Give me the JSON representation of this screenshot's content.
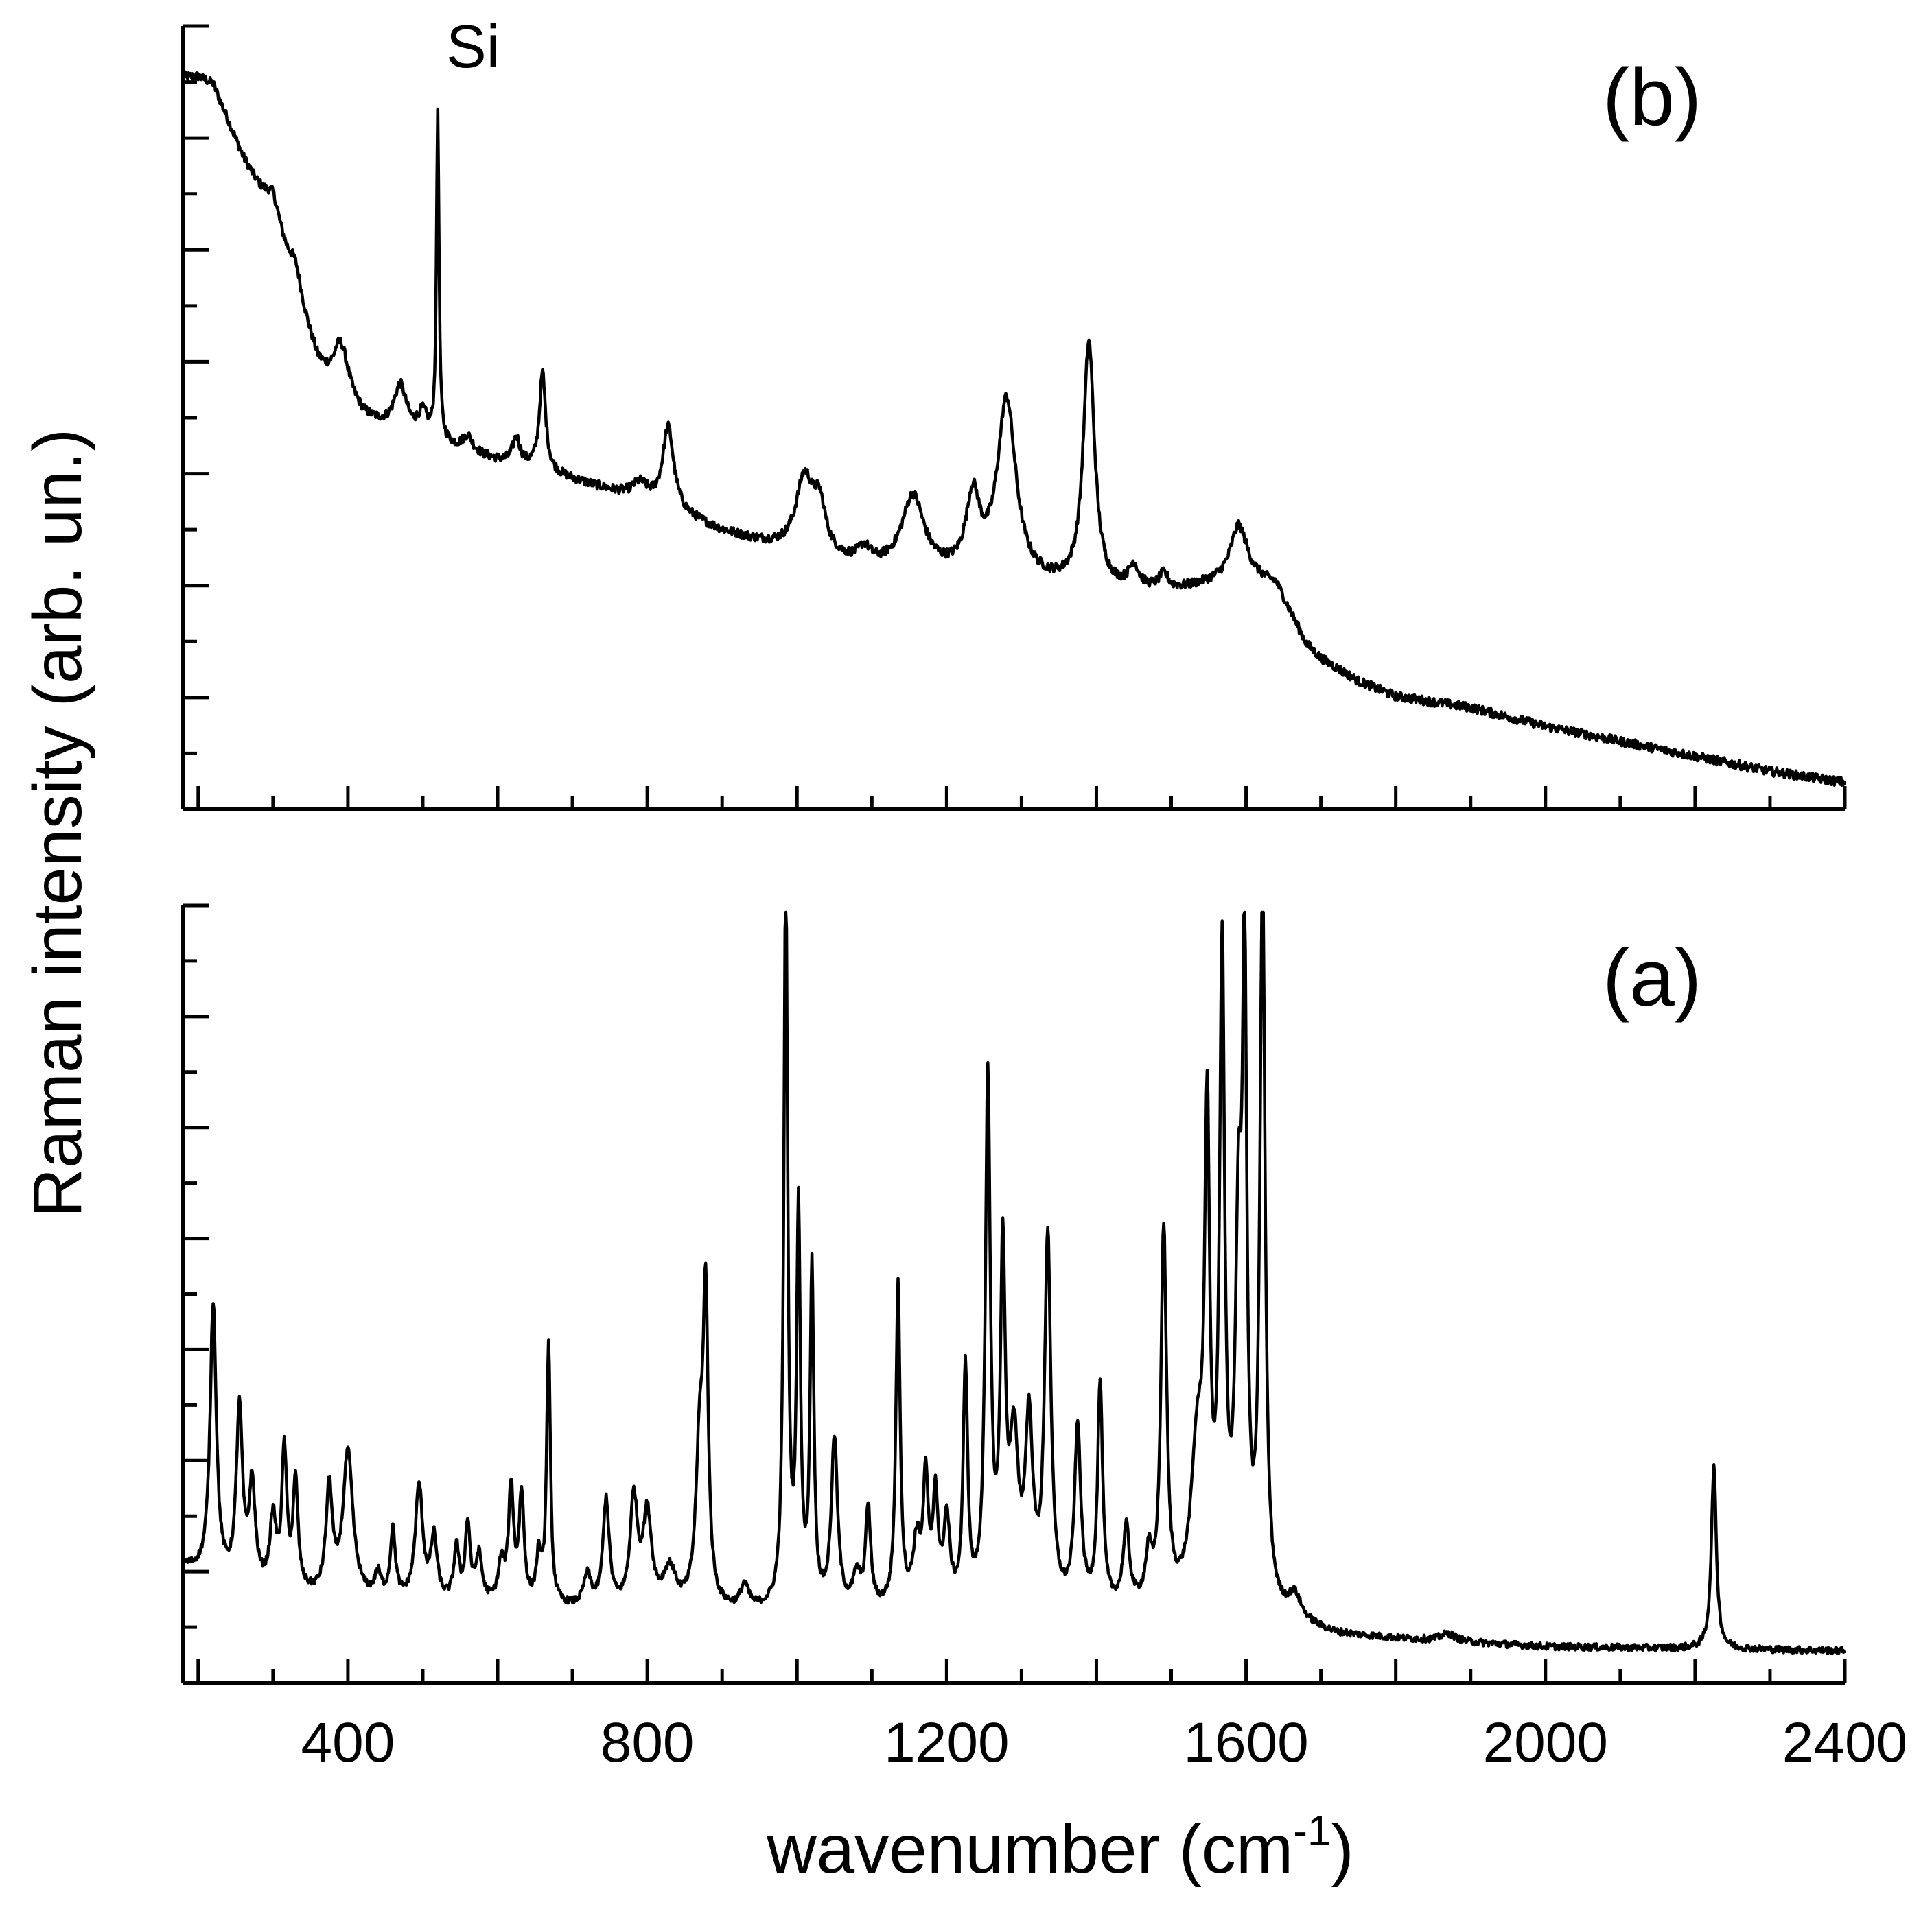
{
  "chart_data": [
    {
      "id": "panel-b",
      "type": "line",
      "panel_label": "(b)",
      "xlabel": "",
      "ylabel": "Raman intensity (arb. un.)",
      "xlim": [
        180,
        2400
      ],
      "ylim": [
        0,
        100
      ],
      "y_ticks_shown": false,
      "baseline": [
        [
          180,
          97
        ],
        [
          200,
          97
        ],
        [
          220,
          96
        ],
        [
          260,
          86
        ],
        [
          300,
          78
        ],
        [
          330,
          68
        ],
        [
          360,
          58
        ],
        [
          380,
          54
        ],
        [
          420,
          51
        ],
        [
          450,
          50
        ],
        [
          500,
          48.5
        ],
        [
          550,
          47
        ],
        [
          600,
          45.5
        ],
        [
          650,
          44.5
        ],
        [
          700,
          43
        ],
        [
          750,
          41.5
        ],
        [
          800,
          40
        ],
        [
          850,
          38
        ],
        [
          900,
          36
        ],
        [
          950,
          34.5
        ],
        [
          1000,
          33
        ],
        [
          1050,
          32
        ],
        [
          1100,
          31
        ],
        [
          1150,
          30.5
        ],
        [
          1200,
          30
        ],
        [
          1250,
          29.5
        ],
        [
          1300,
          29
        ],
        [
          1350,
          28.5
        ],
        [
          1400,
          28
        ],
        [
          1450,
          28
        ],
        [
          1500,
          28
        ],
        [
          1550,
          29
        ],
        [
          1600,
          30
        ],
        [
          1640,
          29
        ],
        [
          1660,
          25
        ],
        [
          1680,
          21
        ],
        [
          1700,
          19
        ],
        [
          1750,
          16
        ],
        [
          1800,
          14
        ],
        [
          1900,
          12.5
        ],
        [
          2000,
          10
        ],
        [
          2100,
          8
        ],
        [
          2200,
          6
        ],
        [
          2300,
          4
        ],
        [
          2400,
          2.5
        ]
      ],
      "peaks": [
        [
          300,
          3,
          12
        ],
        [
          330,
          3.5,
          10
        ],
        [
          390,
          8,
          14
        ],
        [
          470,
          6,
          10
        ],
        [
          500,
          3,
          8
        ],
        [
          520,
          44,
          2
        ],
        [
          560,
          2,
          8
        ],
        [
          625,
          3.5,
          6
        ],
        [
          660,
          13,
          5
        ],
        [
          790,
          2,
          12
        ],
        [
          828,
          11,
          9
        ],
        [
          1010,
          10,
          14
        ],
        [
          1030,
          6,
          10
        ],
        [
          1090,
          2,
          10
        ],
        [
          1155,
          10,
          18
        ],
        [
          1235,
          10,
          11
        ],
        [
          1280,
          24,
          15
        ],
        [
          1390,
          33,
          9
        ],
        [
          1450,
          3,
          8
        ],
        [
          1490,
          2,
          8
        ],
        [
          1590,
          7,
          13
        ]
      ],
      "noise": 0.6,
      "annotations": [
        {
          "text": "Si",
          "x": 520
        }
      ]
    },
    {
      "id": "panel-a",
      "type": "line",
      "panel_label": "(a)",
      "xlabel": "wavenumber (cm",
      "xlabel_sup": "-1",
      "xlabel_close": ")",
      "ylabel": "Raman intensity (arb. un.)",
      "xlim": [
        180,
        2400
      ],
      "ylim": [
        0,
        100
      ],
      "y_ticks_shown": false,
      "x_ticks": [
        400,
        800,
        1200,
        1600,
        2000,
        2400
      ],
      "x_tick_labels": [
        "400",
        "800",
        "1200",
        "1600",
        "2000",
        "2400"
      ],
      "baseline": [
        [
          180,
          14
        ],
        [
          250,
          11
        ],
        [
          400,
          9.5
        ],
        [
          800,
          8
        ],
        [
          1200,
          8
        ],
        [
          1600,
          8
        ],
        [
          1640,
          7
        ],
        [
          1680,
          6
        ],
        [
          1720,
          5
        ],
        [
          1800,
          4.5
        ],
        [
          2000,
          3.5
        ],
        [
          2400,
          3
        ]
      ],
      "peaks": [
        [
          220,
          36,
          5
        ],
        [
          255,
          23,
          5
        ],
        [
          272,
          13,
          5
        ],
        [
          300,
          9,
          5
        ],
        [
          315,
          18,
          4
        ],
        [
          330,
          14,
          4
        ],
        [
          375,
          14,
          5
        ],
        [
          400,
          19,
          8
        ],
        [
          440,
          3,
          5
        ],
        [
          460,
          9,
          4
        ],
        [
          495,
          15,
          6
        ],
        [
          515,
          8,
          5
        ],
        [
          545,
          7,
          4
        ],
        [
          560,
          10,
          4
        ],
        [
          575,
          6,
          5
        ],
        [
          605,
          5,
          5
        ],
        [
          618,
          15,
          4
        ],
        [
          632,
          14,
          4
        ],
        [
          655,
          6,
          4
        ],
        [
          668,
          34,
          3
        ],
        [
          720,
          4,
          6
        ],
        [
          745,
          14,
          5
        ],
        [
          782,
          14,
          6
        ],
        [
          800,
          12,
          7
        ],
        [
          830,
          5,
          10
        ],
        [
          870,
          20,
          6
        ],
        [
          878,
          38,
          4
        ],
        [
          930,
          3,
          6
        ],
        [
          985,
          97,
          3
        ],
        [
          1002,
          51,
          3
        ],
        [
          1020,
          44,
          3
        ],
        [
          1050,
          22,
          5
        ],
        [
          1080,
          4,
          6
        ],
        [
          1095,
          13,
          4
        ],
        [
          1135,
          42,
          3.5
        ],
        [
          1160,
          8,
          6
        ],
        [
          1172,
          16,
          4
        ],
        [
          1185,
          14,
          4
        ],
        [
          1200,
          11,
          5
        ],
        [
          1225,
          31,
          3.5
        ],
        [
          1255,
          68,
          4
        ],
        [
          1275,
          44,
          4
        ],
        [
          1290,
          20,
          7
        ],
        [
          1310,
          23,
          6
        ],
        [
          1335,
          48,
          5
        ],
        [
          1375,
          23,
          5
        ],
        [
          1405,
          29,
          4
        ],
        [
          1440,
          10,
          5
        ],
        [
          1470,
          6,
          5
        ],
        [
          1490,
          49,
          4.5
        ],
        [
          1535,
          20,
          10
        ],
        [
          1548,
          59,
          4
        ],
        [
          1568,
          83,
          4
        ],
        [
          1590,
          45,
          5
        ],
        [
          1598,
          77,
          3.5
        ],
        [
          1622,
          97,
          4
        ],
        [
          1665,
          3,
          10
        ],
        [
          1870,
          1,
          12
        ],
        [
          2225,
          24,
          4
        ]
      ],
      "noise": 0.45
    }
  ]
}
